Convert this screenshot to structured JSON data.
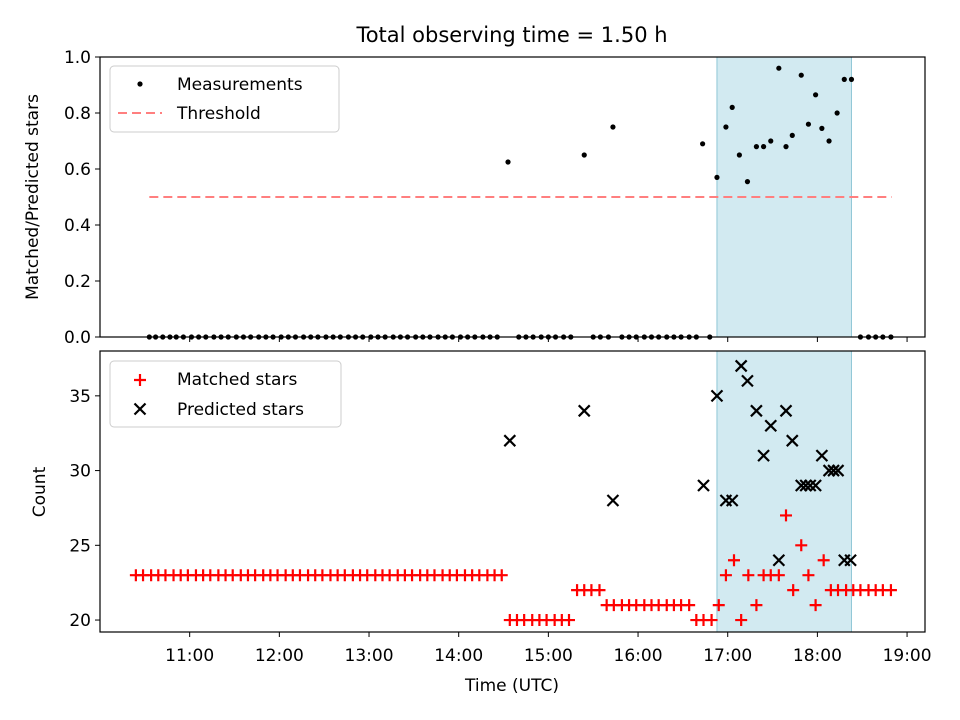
{
  "chart_data": [
    {
      "type": "scatter",
      "title": "Total observing time = 1.50 h",
      "xlabel": "",
      "ylabel": "Matched/Predicted stars",
      "ylim": [
        0,
        1.0
      ],
      "yticks": [
        "0.0",
        "0.2",
        "0.4",
        "0.6",
        "0.8",
        "1.0"
      ],
      "grid": false,
      "legend_placement": "upper-left",
      "shaded_span": {
        "x0": 16.88,
        "x1": 18.38,
        "color": "#add8e6"
      },
      "threshold": {
        "name": "Threshold",
        "value": 0.5,
        "x": [
          10.55,
          18.83
        ],
        "color": "#ff7f7f"
      },
      "series": [
        {
          "name": "Measurements",
          "color": "#000000",
          "marker": "dot",
          "x": [
            10.55,
            10.62,
            10.7,
            10.78,
            10.85,
            10.93,
            11.02,
            11.1,
            11.18,
            11.27,
            11.35,
            11.43,
            11.52,
            11.6,
            11.68,
            11.77,
            11.85,
            11.93,
            12.02,
            12.1,
            12.18,
            12.27,
            12.35,
            12.43,
            12.52,
            12.6,
            12.68,
            12.77,
            12.85,
            12.93,
            13.02,
            13.1,
            13.18,
            13.27,
            13.35,
            13.43,
            13.52,
            13.6,
            13.68,
            13.77,
            13.85,
            13.93,
            14.02,
            14.1,
            14.18,
            14.27,
            14.35,
            14.43,
            14.55,
            14.67,
            14.75,
            14.83,
            14.92,
            15.0,
            15.08,
            15.17,
            15.25,
            15.4,
            15.5,
            15.58,
            15.67,
            15.72,
            15.82,
            15.9,
            15.98,
            16.07,
            16.15,
            16.23,
            16.32,
            16.4,
            16.48,
            16.57,
            16.65,
            16.72,
            16.8,
            16.88,
            16.98,
            17.05,
            17.13,
            17.22,
            17.32,
            17.4,
            17.48,
            17.57,
            17.65,
            17.72,
            17.82,
            17.9,
            17.98,
            18.05,
            18.13,
            18.22,
            18.3,
            18.38,
            18.48,
            18.57,
            18.65,
            18.73,
            18.82
          ],
          "y": [
            0,
            0,
            0,
            0,
            0,
            0,
            0,
            0,
            0,
            0,
            0,
            0,
            0,
            0,
            0,
            0,
            0,
            0,
            0,
            0,
            0,
            0,
            0,
            0,
            0,
            0,
            0,
            0,
            0,
            0,
            0,
            0,
            0,
            0,
            0,
            0,
            0,
            0,
            0,
            0,
            0,
            0,
            0,
            0,
            0,
            0,
            0,
            0,
            0.625,
            0,
            0,
            0,
            0,
            0,
            0,
            0,
            0,
            0.65,
            0,
            0,
            0,
            0.75,
            0,
            0,
            0,
            0,
            0,
            0,
            0,
            0,
            0,
            0,
            0,
            0.69,
            0,
            0.57,
            0.75,
            0.82,
            0.65,
            0.555,
            0.68,
            0.68,
            0.7,
            0.96,
            0.68,
            0.72,
            0.935,
            0.76,
            0.865,
            0.745,
            0.7,
            0.8,
            0.92,
            0.92,
            0,
            0,
            0,
            0,
            0
          ]
        }
      ]
    },
    {
      "type": "scatter",
      "title": "",
      "xlabel": "Time (UTC)",
      "ylabel": "Count",
      "ylim": [
        19.2,
        38.0
      ],
      "yticks": [
        "20",
        "25",
        "30",
        "35"
      ],
      "xlim": [
        10.0,
        19.2
      ],
      "xticks": [
        "11:00",
        "12:00",
        "13:00",
        "14:00",
        "15:00",
        "16:00",
        "17:00",
        "18:00",
        "19:00"
      ],
      "grid": false,
      "legend_placement": "upper-left",
      "shaded_span": {
        "x0": 16.88,
        "x1": 18.38,
        "color": "#add8e6"
      },
      "series": [
        {
          "name": "Matched stars",
          "color": "#ff0000",
          "marker": "plus",
          "x": [
            10.4,
            10.48,
            10.57,
            10.65,
            10.73,
            10.82,
            10.9,
            10.98,
            11.07,
            11.15,
            11.23,
            11.32,
            11.4,
            11.48,
            11.57,
            11.65,
            11.73,
            11.82,
            11.9,
            11.98,
            12.07,
            12.15,
            12.23,
            12.32,
            12.4,
            12.48,
            12.57,
            12.65,
            12.73,
            12.82,
            12.9,
            12.98,
            13.07,
            13.15,
            13.23,
            13.32,
            13.4,
            13.48,
            13.57,
            13.65,
            13.73,
            13.82,
            13.9,
            13.98,
            14.07,
            14.15,
            14.23,
            14.32,
            14.4,
            14.48,
            14.57,
            14.65,
            14.73,
            14.82,
            14.9,
            14.98,
            15.07,
            15.15,
            15.23,
            15.32,
            15.4,
            15.48,
            15.57,
            15.65,
            15.73,
            15.82,
            15.9,
            15.98,
            16.07,
            16.15,
            16.23,
            16.32,
            16.4,
            16.48,
            16.57,
            16.65,
            16.73,
            16.82,
            16.9,
            16.98,
            17.07,
            17.15,
            17.23,
            17.32,
            17.4,
            17.48,
            17.57,
            17.65,
            17.73,
            17.82,
            17.9,
            17.98,
            18.07,
            18.15,
            18.23,
            18.32,
            18.4,
            18.48,
            18.57,
            18.65,
            18.73,
            18.82
          ],
          "y": [
            23,
            23,
            23,
            23,
            23,
            23,
            23,
            23,
            23,
            23,
            23,
            23,
            23,
            23,
            23,
            23,
            23,
            23,
            23,
            23,
            23,
            23,
            23,
            23,
            23,
            23,
            23,
            23,
            23,
            23,
            23,
            23,
            23,
            23,
            23,
            23,
            23,
            23,
            23,
            23,
            23,
            23,
            23,
            23,
            23,
            23,
            23,
            23,
            23,
            23,
            20,
            20,
            20,
            20,
            20,
            20,
            20,
            20,
            20,
            22,
            22,
            22,
            22,
            21,
            21,
            21,
            21,
            21,
            21,
            21,
            21,
            21,
            21,
            21,
            21,
            20,
            20,
            20,
            21,
            23,
            24,
            20,
            23,
            21,
            23,
            23,
            23,
            27,
            22,
            25,
            23,
            21,
            24,
            22,
            22,
            22,
            22,
            22,
            22,
            22,
            22,
            22
          ]
        },
        {
          "name": "Predicted stars",
          "color": "#000000",
          "marker": "x",
          "x": [
            14.57,
            15.4,
            15.72,
            16.73,
            16.88,
            16.98,
            17.05,
            17.15,
            17.22,
            17.32,
            17.4,
            17.48,
            17.57,
            17.65,
            17.72,
            17.82,
            17.87,
            17.92,
            17.98,
            18.05,
            18.13,
            18.18,
            18.23,
            18.3,
            18.37
          ],
          "y": [
            32,
            34,
            28,
            29,
            35,
            28,
            28,
            37,
            36,
            34,
            31,
            33,
            24,
            34,
            32,
            29,
            29,
            29,
            29,
            31,
            30,
            30,
            30,
            24,
            24
          ]
        }
      ]
    }
  ]
}
